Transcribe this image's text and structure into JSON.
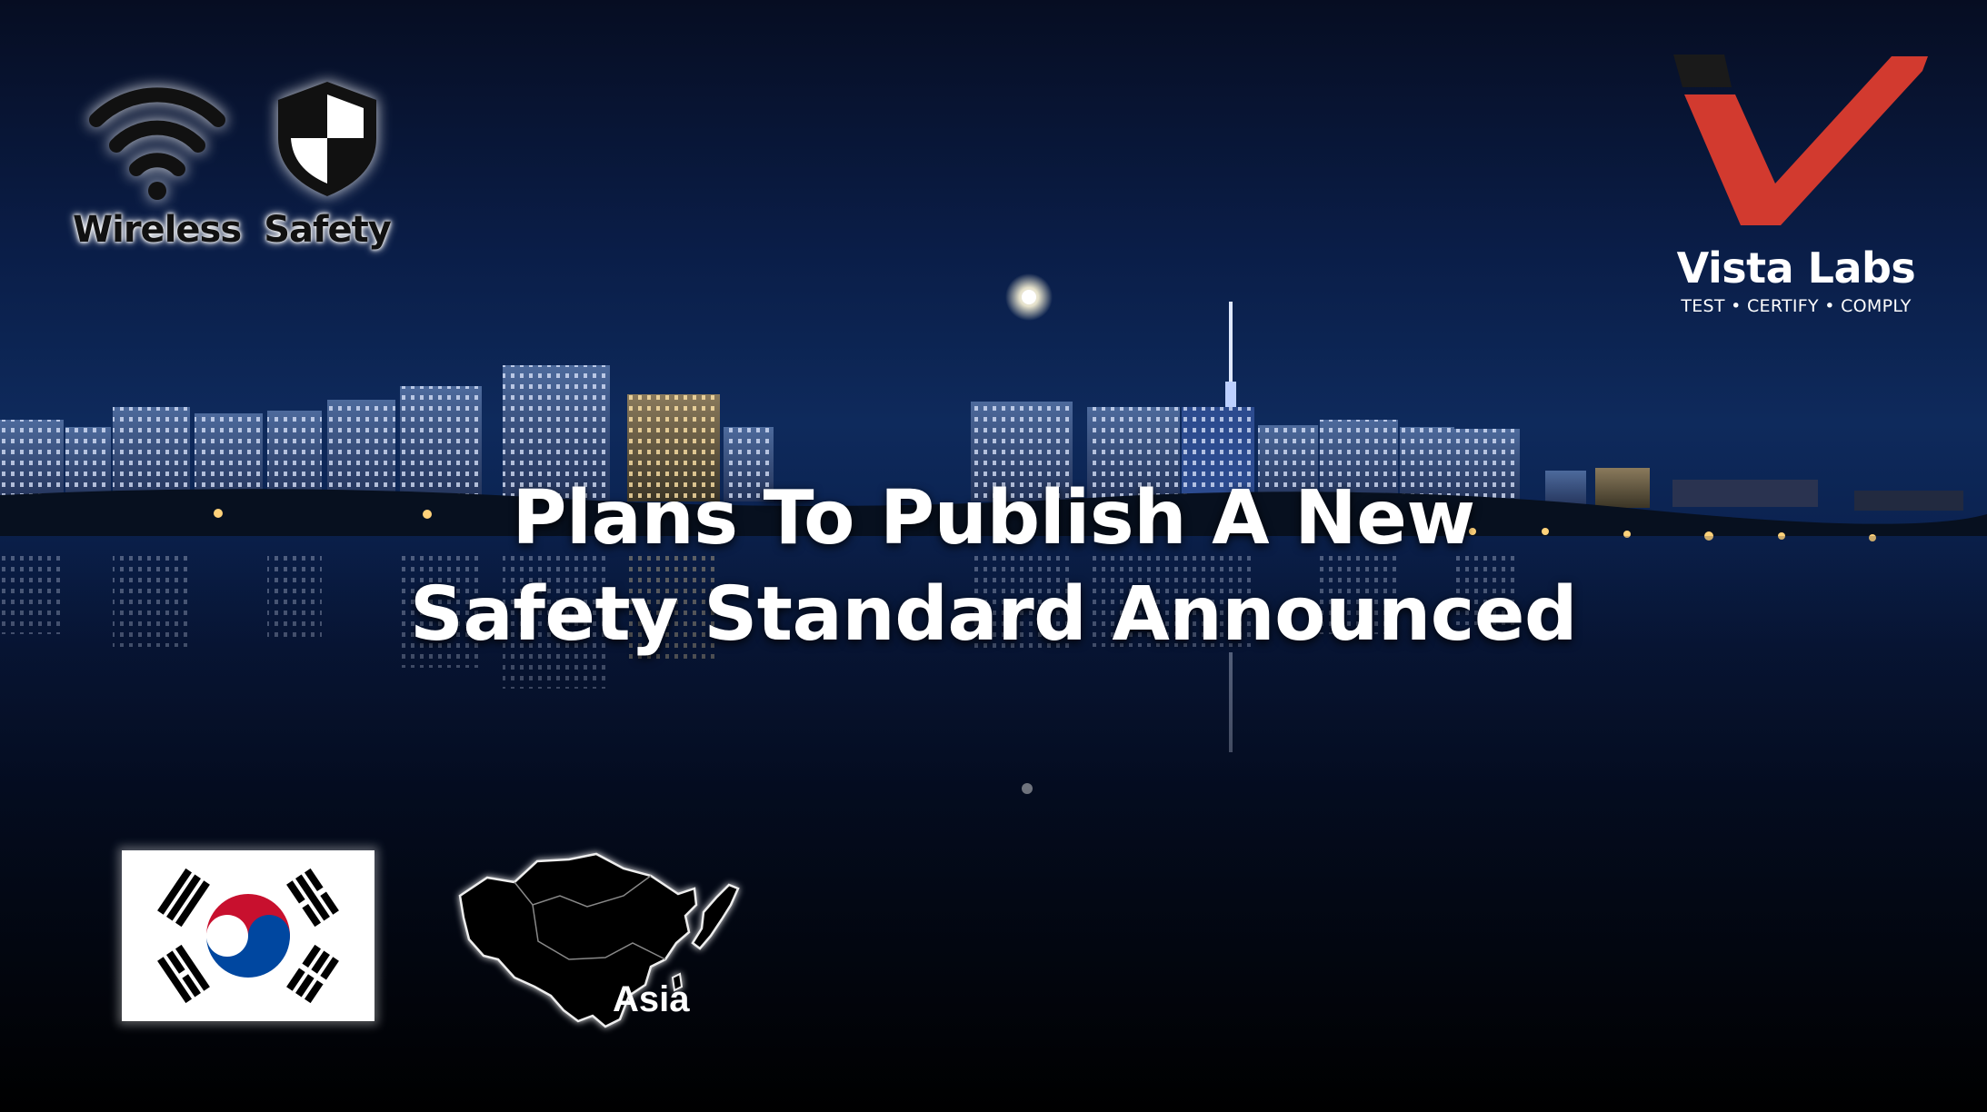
{
  "headline": {
    "line1": "Plans To Publish A New",
    "line2": "Safety Standard Announced"
  },
  "badges": [
    {
      "label": "Wireless",
      "icon": "wifi-icon"
    },
    {
      "label": "Safety",
      "icon": "shield-icon"
    }
  ],
  "brand": {
    "name": "Vista Labs",
    "tagline": "TEST • CERTIFY • COMPLY",
    "colors": {
      "accent": "#d23a2f",
      "dark": "#1a1a1a"
    }
  },
  "region": {
    "label": "Asia",
    "flag": "south-korea-flag"
  },
  "flag_colors": {
    "red": "#c8102e",
    "blue": "#0047a0",
    "black": "#000000"
  }
}
